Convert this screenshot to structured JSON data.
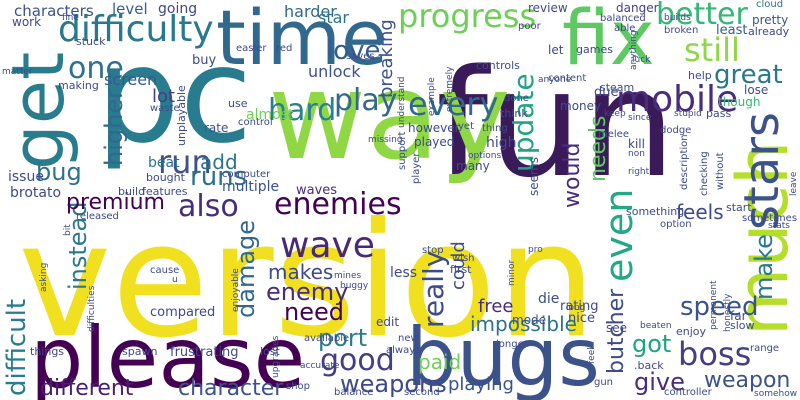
{
  "words": [
    {
      "text": "version",
      "color": "#f0e020"
    },
    {
      "text": "fun",
      "color": "#3b1a5a"
    },
    {
      "text": "pc",
      "color": "#287c8e"
    },
    {
      "text": "way",
      "color": "#8fd744"
    },
    {
      "text": "time",
      "color": "#31688e"
    },
    {
      "text": "fix",
      "color": "#5ec962"
    },
    {
      "text": "please",
      "color": "#440154"
    },
    {
      "text": "bugs",
      "color": "#3b528b"
    },
    {
      "text": "get",
      "color": "#287c8e"
    },
    {
      "text": "difficulty",
      "color": "#2a788e"
    },
    {
      "text": "much",
      "color": "#b5de2b"
    },
    {
      "text": "stars",
      "color": "#3b528b"
    },
    {
      "text": "progress",
      "color": "#6ece58"
    },
    {
      "text": "mobile",
      "color": "#472d7b"
    },
    {
      "text": "every",
      "color": "#31688e"
    },
    {
      "text": "hard",
      "color": "#26828e"
    },
    {
      "text": "play",
      "color": "#31688e"
    },
    {
      "text": "one",
      "color": "#2c728e"
    },
    {
      "text": "still",
      "color": "#8fd744"
    },
    {
      "text": "better",
      "color": "#35b779"
    },
    {
      "text": "great",
      "color": "#2a788e"
    },
    {
      "text": "love",
      "color": "#365c8d"
    },
    {
      "text": "breaking",
      "color": "#3b528b"
    },
    {
      "text": "update",
      "color": "#20a386"
    },
    {
      "text": "even",
      "color": "#22a884"
    },
    {
      "text": "run",
      "color": "#3b528b"
    },
    {
      "text": "runs",
      "color": "#2c728e"
    },
    {
      "text": "also",
      "color": "#472d7b"
    },
    {
      "text": "enemies",
      "color": "#440154"
    },
    {
      "text": "wave",
      "color": "#482878"
    },
    {
      "text": "good",
      "color": "#433e85"
    },
    {
      "text": "really",
      "color": "#3e4a89"
    },
    {
      "text": "boss",
      "color": "#433e85"
    },
    {
      "text": "speed",
      "color": "#3b528b"
    },
    {
      "text": "got",
      "color": "#20a386"
    },
    {
      "text": "give",
      "color": "#472d7b"
    },
    {
      "text": "weapon",
      "color": "#3b528b"
    },
    {
      "text": "weapons",
      "color": "#3e4a89"
    },
    {
      "text": "different",
      "color": "#481f70"
    },
    {
      "text": "character",
      "color": "#3b528b"
    },
    {
      "text": "difficult",
      "color": "#287c8e"
    },
    {
      "text": "instead",
      "color": "#2a788e"
    },
    {
      "text": "premium",
      "color": "#440154"
    },
    {
      "text": "bug",
      "color": "#2c728e"
    },
    {
      "text": "higher",
      "color": "#31688e"
    },
    {
      "text": "damage",
      "color": "#31688e"
    },
    {
      "text": "enemy",
      "color": "#472d7b"
    },
    {
      "text": "need",
      "color": "#440154"
    },
    {
      "text": "port",
      "color": "#287c8e"
    },
    {
      "text": "makes",
      "color": "#3e4a89"
    },
    {
      "text": "butcher",
      "color": "#3e4a89"
    },
    {
      "text": "make",
      "color": "#2a788e"
    },
    {
      "text": "impossible",
      "color": "#2c728e"
    },
    {
      "text": "paid",
      "color": "#6ece58"
    },
    {
      "text": "playing",
      "color": "#3b528b"
    },
    {
      "text": "feels",
      "color": "#3e4a89"
    },
    {
      "text": "would",
      "color": "#472d7b"
    },
    {
      "text": "needs",
      "color": "#5ec962"
    },
    {
      "text": "screen",
      "color": "#365c8d"
    },
    {
      "text": "add",
      "color": "#2c728e"
    },
    {
      "text": "lot",
      "color": "#433e85"
    },
    {
      "text": "could",
      "color": "#3e4a89"
    },
    {
      "text": "free",
      "color": "#472d7b"
    },
    {
      "text": "characters",
      "color": "#3b528b"
    },
    {
      "text": "level",
      "color": "#365c8d"
    },
    {
      "text": "going",
      "color": "#3e4a89"
    },
    {
      "text": "harder",
      "color": "#31688e"
    },
    {
      "text": "star",
      "color": "#2c728e"
    },
    {
      "text": "unlock",
      "color": "#3b528b"
    },
    {
      "text": "almost",
      "color": "#6ece58"
    },
    {
      "text": "beat",
      "color": "#2c728e"
    },
    {
      "text": "review",
      "color": "#3e4a89"
    },
    {
      "text": "danger",
      "color": "#433e85"
    },
    {
      "text": "cloud",
      "color": "#2c728e"
    },
    {
      "text": "steam",
      "color": "#3b528b"
    },
    {
      "text": "pretty",
      "color": "#3b528b"
    },
    {
      "text": "least",
      "color": "#365c8d"
    },
    {
      "text": "already",
      "color": "#3e4a89"
    },
    {
      "text": "lose",
      "color": "#3e4a89"
    },
    {
      "text": "though",
      "color": "#35b779"
    },
    {
      "text": "help",
      "color": "#3e4a89"
    },
    {
      "text": "pass",
      "color": "#3e4a89"
    },
    {
      "text": "issue",
      "color": "#3e4a89"
    },
    {
      "text": "brotato",
      "color": "#3e4a89"
    },
    {
      "text": "multiple",
      "color": "#3b528b"
    },
    {
      "text": "bought",
      "color": "#3e4a89"
    },
    {
      "text": "features",
      "color": "#3e4a89"
    },
    {
      "text": "build",
      "color": "#3e4a89"
    },
    {
      "text": "waves",
      "color": "#472d7b"
    },
    {
      "text": "computer",
      "color": "#3e4a89"
    },
    {
      "text": "rate",
      "color": "#3b528b"
    },
    {
      "text": "use",
      "color": "#3e4a89"
    },
    {
      "text": "unplayable",
      "color": "#3e4a89"
    },
    {
      "text": "buy",
      "color": "#3e4a89"
    },
    {
      "text": "waste",
      "color": "#3e4a89"
    },
    {
      "text": "making",
      "color": "#3e4a89"
    },
    {
      "text": "work",
      "color": "#3e4a89"
    },
    {
      "text": "stuck",
      "color": "#3e4a89"
    },
    {
      "text": "easier",
      "color": "#3e4a89"
    },
    {
      "text": "red",
      "color": "#3e4a89"
    },
    {
      "text": "controls",
      "color": "#3e4a89"
    },
    {
      "text": "let",
      "color": "#3e4a89"
    },
    {
      "text": "games",
      "color": "#3e4a89"
    },
    {
      "text": "poor",
      "color": "#3e4a89"
    },
    {
      "text": "able",
      "color": "#3e4a89"
    },
    {
      "text": "broken",
      "color": "#3e4a89"
    },
    {
      "text": "balanced",
      "color": "#3e4a89"
    },
    {
      "text": "builds",
      "color": "#3e4a89"
    },
    {
      "text": "control",
      "color": "#3e4a89"
    },
    {
      "text": "saves",
      "color": "#3e4a89"
    },
    {
      "text": "however",
      "color": "#3e4a89"
    },
    {
      "text": "played",
      "color": "#3e4a89"
    },
    {
      "text": "high",
      "color": "#3e4a89"
    },
    {
      "text": "many",
      "color": "#3e4a89"
    },
    {
      "text": "seems",
      "color": "#3e4a89"
    },
    {
      "text": "something",
      "color": "#3e4a89"
    },
    {
      "text": "option",
      "color": "#3e4a89"
    },
    {
      "text": "start",
      "color": "#3e4a89"
    },
    {
      "text": "sometimes",
      "color": "#3e4a89"
    },
    {
      "text": "stats",
      "color": "#3e4a89"
    },
    {
      "text": "less",
      "color": "#3e4a89"
    },
    {
      "text": "die",
      "color": "#3e4a89"
    },
    {
      "text": "rating",
      "color": "#3e4a89"
    },
    {
      "text": "nice",
      "color": "#3e4a89"
    },
    {
      "text": "mode",
      "color": "#3e4a89"
    },
    {
      "text": "edit",
      "color": "#3e4a89"
    },
    {
      "text": "compared",
      "color": "#3e4a89"
    },
    {
      "text": "cause",
      "color": "#3e4a89"
    },
    {
      "text": "spawn",
      "color": "#3e4a89"
    },
    {
      "text": "frustrating",
      "color": "#3e4a89"
    },
    {
      "text": "lost",
      "color": "#3e4a89"
    },
    {
      "text": "available",
      "color": "#3e4a89"
    },
    {
      "text": "always",
      "color": "#3e4a89"
    },
    {
      "text": "new",
      "color": "#3e4a89"
    },
    {
      "text": "see",
      "color": "#3e4a89"
    },
    {
      "text": "enjoy",
      "color": "#3e4a89"
    },
    {
      "text": "slow",
      "color": "#3e4a89"
    },
    {
      "text": "far",
      "color": "#3e4a89"
    },
    {
      "text": "range",
      "color": "#3e4a89"
    },
    {
      "text": "shop",
      "color": "#3e4a89"
    },
    {
      "text": "balance",
      "color": "#3e4a89"
    },
    {
      "text": "second",
      "color": "#3e4a89"
    },
    {
      "text": "controller",
      "color": "#3e4a89"
    },
    {
      "text": "gun",
      "color": "#3e4a89"
    },
    {
      "text": "things",
      "color": "#3e4a89"
    },
    {
      "text": "released",
      "color": "#3e4a89"
    },
    {
      "text": "first",
      "color": "#3e4a89"
    },
    {
      "text": "longer",
      "color": "#3e4a89"
    },
    {
      "text": "wish",
      "color": "#3e4a89"
    },
    {
      "text": "stop",
      "color": "#3e4a89"
    },
    {
      "text": "due",
      "color": "#3e4a89"
    },
    {
      "text": "money",
      "color": "#3e4a89"
    },
    {
      "text": "kill",
      "color": "#3e4a89"
    },
    {
      "text": "melee",
      "color": "#3e4a89"
    },
    {
      "text": "dodge",
      "color": "#3e4a89"
    },
    {
      "text": "think",
      "color": "#3e4a89"
    },
    {
      "text": "thing",
      "color": "#3e4a89"
    },
    {
      "text": "yet",
      "color": "#3e4a89"
    },
    {
      "text": "done",
      "color": "#3e4a89"
    },
    {
      "text": "support",
      "color": "#3e4a89"
    },
    {
      "text": "player",
      "color": "#3e4a89"
    },
    {
      "text": "options",
      "color": "#3e4a89"
    },
    {
      "text": "content",
      "color": "#3e4a89"
    },
    {
      "text": "anyone",
      "color": "#3e4a89"
    },
    {
      "text": "keep",
      "color": "#3e4a89"
    },
    {
      "text": "since",
      "color": "#3e4a89"
    },
    {
      "text": "stupid",
      "color": "#3e4a89"
    },
    {
      "text": "non",
      "color": "#3e4a89"
    },
    {
      "text": "right",
      "color": "#3e4a89"
    },
    {
      "text": "description",
      "color": "#3e4a89"
    },
    {
      "text": "checking",
      "color": "#3e4a89"
    },
    {
      "text": "without",
      "color": "#3e4a89"
    },
    {
      "text": "leave",
      "color": "#3e4a89"
    },
    {
      "text": "pro",
      "color": "#3e4a89"
    },
    {
      "text": "minor",
      "color": "#3e4a89"
    },
    {
      "text": "mines",
      "color": "#3e4a89"
    },
    {
      "text": "buggy",
      "color": "#3e4a89"
    },
    {
      "text": "permanent",
      "color": "#3e4a89"
    },
    {
      "text": "honestly",
      "color": "#3e4a89"
    },
    {
      "text": "beaten",
      "color": "#3e4a89"
    },
    {
      "text": ".back",
      "color": "#3e4a89"
    },
    {
      "text": "feel",
      "color": "#3e4a89"
    },
    {
      "text": "upgrades",
      "color": "#3e4a89"
    },
    {
      "text": "accurate",
      "color": "#3e4a89"
    },
    {
      "text": "enjoyable",
      "color": "#3e4a89"
    },
    {
      "text": "difficulties",
      "color": "#3e4a89"
    },
    {
      "text": "asking",
      "color": "#3e4a89"
    },
    {
      "text": "bit",
      "color": "#3e4a89"
    },
    {
      "text": "u",
      "color": "#3e4a89"
    },
    {
      "text": "matter",
      "color": "#3e4a89"
    },
    {
      "text": "understand",
      "color": "#3e4a89"
    },
    {
      "text": "extremely",
      "color": "#3e4a89"
    },
    {
      "text": "example",
      "color": "#3e4a89"
    },
    {
      "text": "anything",
      "color": "#3e4a89"
    },
    {
      "text": "luck",
      "color": "#3e4a89"
    },
    {
      "text": "missing",
      "color": "#3e4a89"
    },
    {
      "text": "fine",
      "color": "#3e4a89"
    },
    {
      "text": "long",
      "color": "#3e4a89"
    },
    {
      "text": "somehow",
      "color": "#3e4a89"
    }
  ]
}
